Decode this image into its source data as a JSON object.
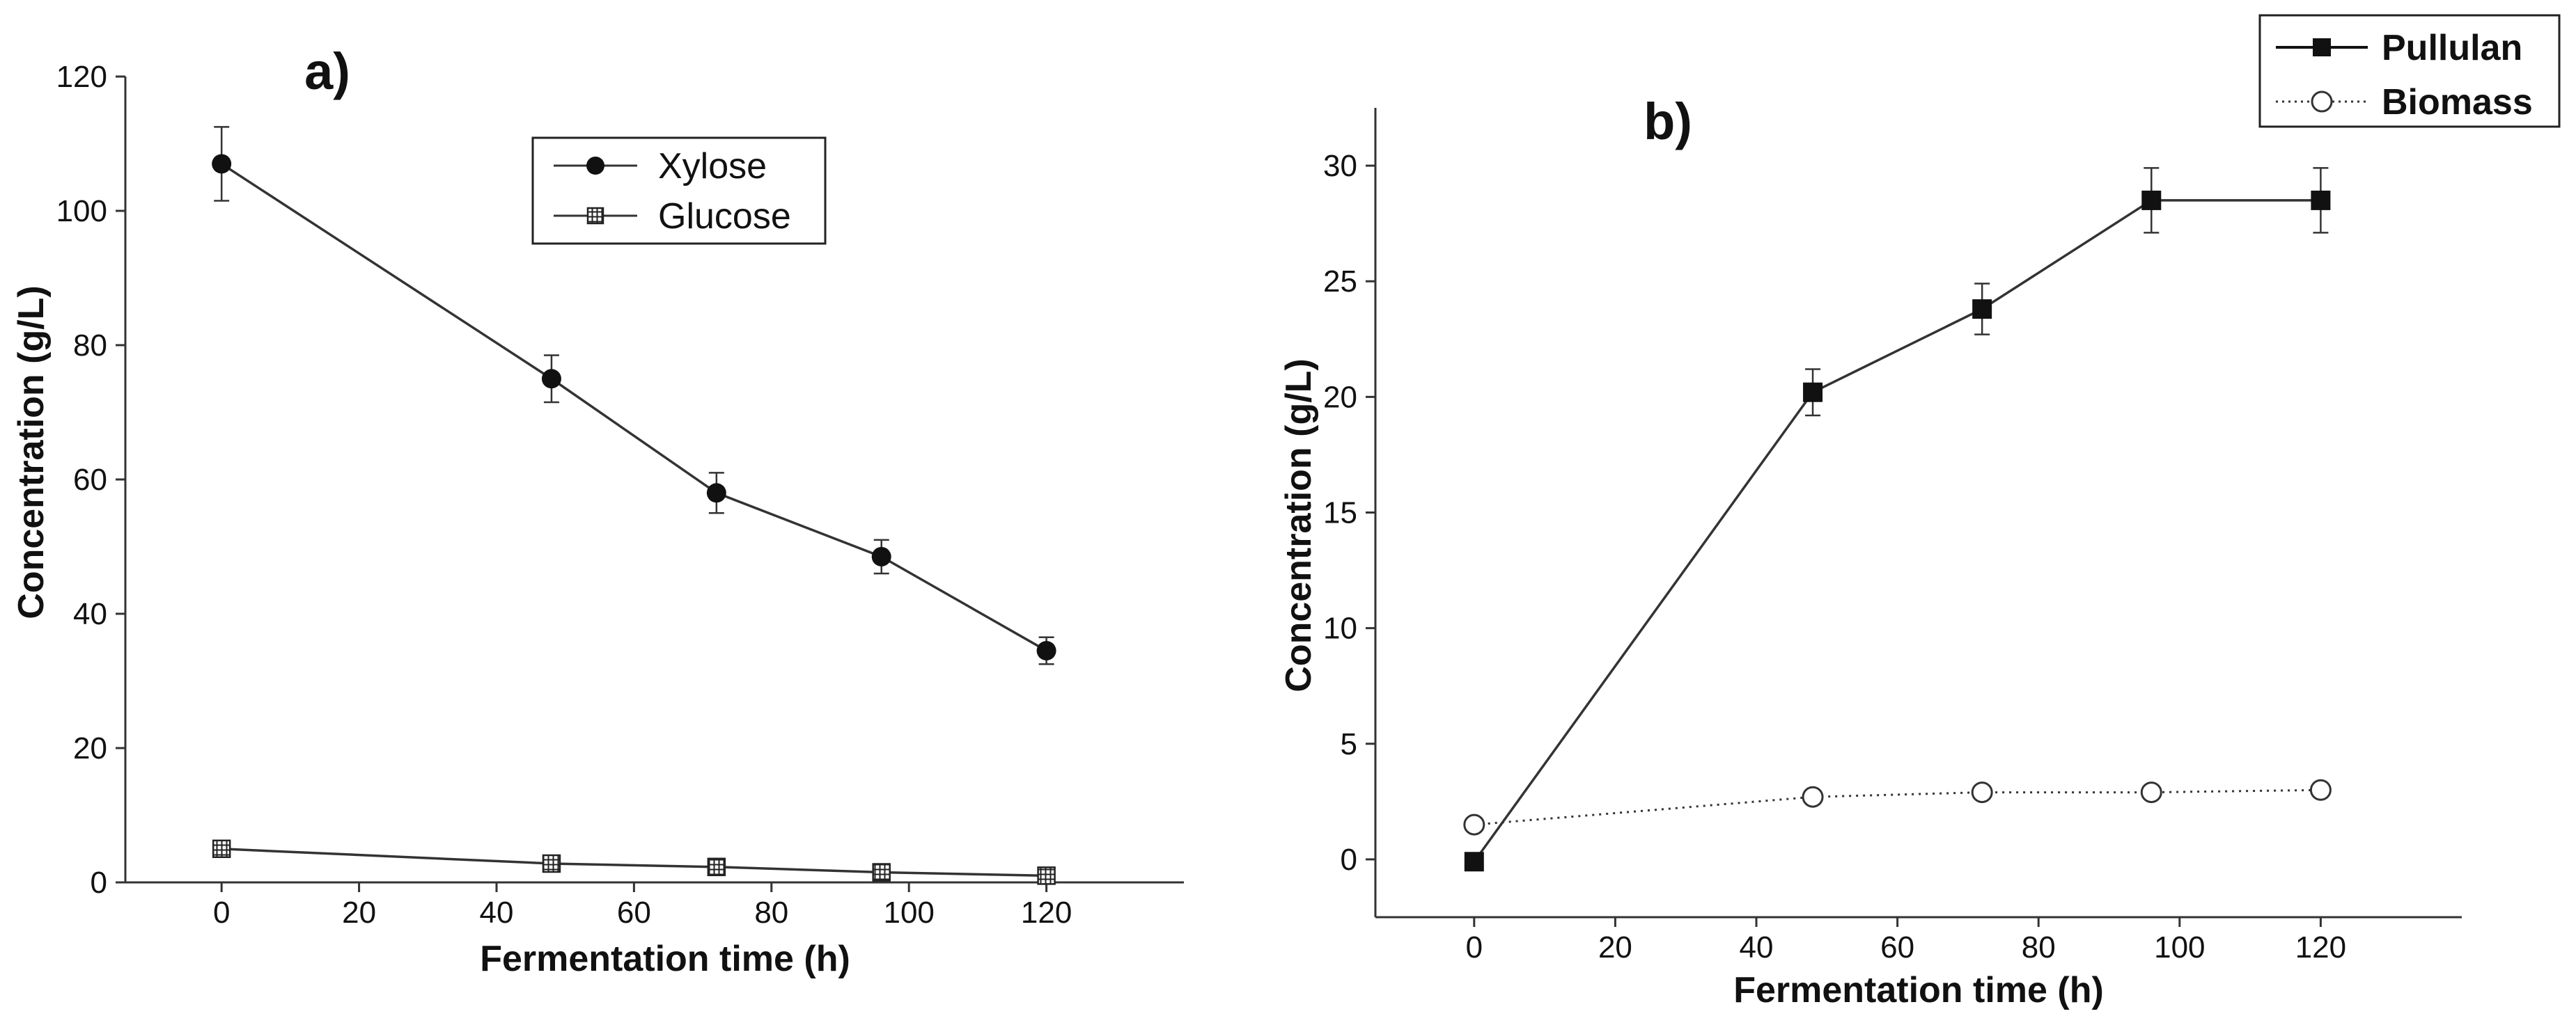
{
  "chart_data": [
    {
      "type": "line",
      "panel_label": "a)",
      "xlabel": "Fermentation time (h)",
      "ylabel": "Concentration (g/L)",
      "xlim": [
        -14,
        140
      ],
      "ylim": [
        0,
        120
      ],
      "xticks": [
        0,
        20,
        40,
        60,
        80,
        100,
        120
      ],
      "yticks": [
        0,
        20,
        40,
        60,
        80,
        100,
        120
      ],
      "x": [
        0,
        48,
        72,
        96,
        120
      ],
      "series": [
        {
          "name": "Xylose",
          "marker": "filled-circle",
          "line": "solid",
          "values": [
            107,
            75,
            58,
            48.5,
            34.5
          ],
          "errors": [
            5.5,
            3.5,
            3,
            2.5,
            2
          ]
        },
        {
          "name": "Glucose",
          "marker": "hatched-square",
          "line": "solid",
          "values": [
            5,
            2.8,
            2.3,
            1.5,
            1
          ],
          "errors": [
            0.5,
            0.4,
            0.4,
            0.3,
            0.2
          ]
        }
      ],
      "legend": "top-center"
    },
    {
      "type": "line",
      "panel_label": "b)",
      "xlabel": "Fermentation time (h)",
      "ylabel": "Concentration (g/L)",
      "xlim": [
        -14,
        140
      ],
      "ylim": [
        -2.5,
        32.5
      ],
      "xticks": [
        0,
        20,
        40,
        60,
        80,
        100,
        120
      ],
      "yticks": [
        0,
        5,
        10,
        15,
        20,
        25,
        30
      ],
      "x": [
        0,
        48,
        72,
        96,
        120
      ],
      "series": [
        {
          "name": "Pullulan",
          "marker": "filled-square",
          "line": "solid",
          "values": [
            -0.1,
            20.2,
            23.8,
            28.5,
            28.5
          ],
          "errors": [
            0,
            1.0,
            1.1,
            1.4,
            1.4
          ]
        },
        {
          "name": "Biomass",
          "marker": "open-circle",
          "line": "dotted",
          "values": [
            1.5,
            2.7,
            2.9,
            2.9,
            3.0
          ],
          "errors": [
            0,
            0,
            0,
            0,
            0
          ]
        }
      ],
      "legend": "top-right"
    }
  ]
}
